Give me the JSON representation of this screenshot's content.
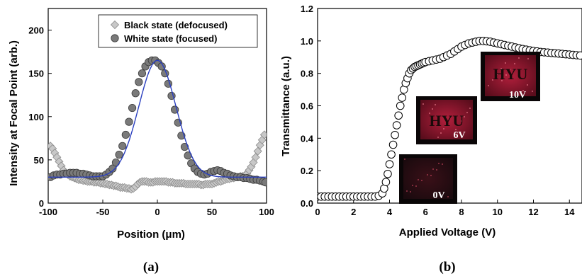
{
  "chart_data": [
    {
      "panel_label": "(a)",
      "type": "scatter",
      "xlabel": "Position (μm)",
      "ylabel": "Intensity at Focal Point (arb.)",
      "xlim": [
        -100,
        100
      ],
      "ylim": [
        0,
        225
      ],
      "xticks": [
        -100,
        -50,
        0,
        50,
        100
      ],
      "yticks": [
        0,
        50,
        100,
        150,
        200
      ],
      "legend": "top-right",
      "grid": false,
      "series": [
        {
          "name": "Black state (defocused)",
          "marker": "diamond",
          "color": "#c8c8c8",
          "x": [
            -98,
            -96,
            -94,
            -92,
            -90,
            -88,
            -86,
            -84,
            -82,
            -80,
            -78,
            -76,
            -74,
            -72,
            -70,
            -68,
            -66,
            -64,
            -62,
            -60,
            -58,
            -56,
            -54,
            -52,
            -50,
            -48,
            -46,
            -44,
            -42,
            -40,
            -38,
            -36,
            -34,
            -32,
            -30,
            -28,
            -26,
            -24,
            -22,
            -20,
            -18,
            -16,
            -14,
            -12,
            -10,
            -8,
            -6,
            -4,
            -2,
            0,
            2,
            4,
            6,
            8,
            10,
            12,
            14,
            16,
            18,
            20,
            22,
            24,
            26,
            28,
            30,
            32,
            34,
            36,
            38,
            40,
            42,
            44,
            46,
            48,
            50,
            52,
            54,
            56,
            58,
            60,
            62,
            64,
            66,
            68,
            70,
            72,
            74,
            76,
            78,
            80,
            82,
            84,
            86,
            88,
            90,
            92,
            94,
            96,
            98
          ],
          "y": [
            66,
            63,
            58,
            53,
            48,
            43,
            38,
            35,
            33,
            31,
            30,
            29,
            28,
            27,
            27,
            26,
            26,
            25,
            25,
            25,
            24,
            24,
            24,
            23,
            23,
            22,
            22,
            21,
            21,
            20,
            20,
            19,
            18,
            18,
            18,
            17,
            17,
            16,
            17,
            19,
            22,
            24,
            25,
            25,
            25,
            24,
            24,
            24,
            25,
            25,
            25,
            25,
            25,
            25,
            24,
            24,
            24,
            23,
            23,
            23,
            23,
            23,
            22,
            22,
            22,
            22,
            22,
            22,
            22,
            21,
            21,
            22,
            22,
            22,
            22,
            23,
            24,
            25,
            25,
            26,
            27,
            28,
            28,
            29,
            29,
            30,
            30,
            31,
            31,
            32,
            34,
            38,
            42,
            47,
            53,
            60,
            67,
            73,
            79
          ]
        },
        {
          "name": "White state (focused)",
          "marker": "circle",
          "color": "#7a7a7a",
          "x": [
            -98,
            -95,
            -92,
            -89,
            -86,
            -83,
            -80,
            -77,
            -74,
            -71,
            -68,
            -65,
            -62,
            -59,
            -56,
            -53,
            -50,
            -47,
            -44,
            -41,
            -38,
            -35,
            -32,
            -29,
            -26,
            -23,
            -20,
            -17,
            -14,
            -11,
            -8,
            -5,
            -2,
            1,
            4,
            7,
            10,
            13,
            16,
            19,
            22,
            25,
            28,
            31,
            34,
            37,
            40,
            43,
            46,
            49,
            52,
            55,
            58,
            61,
            64,
            67,
            70,
            73,
            76,
            79,
            82,
            85,
            88,
            91,
            94,
            97,
            99
          ],
          "y": [
            30,
            32,
            33,
            33,
            34,
            34,
            35,
            35,
            35,
            34,
            34,
            33,
            32,
            31,
            31,
            31,
            31,
            33,
            36,
            40,
            47,
            56,
            66,
            79,
            94,
            110,
            127,
            140,
            150,
            158,
            163,
            165,
            165,
            162,
            158,
            150,
            138,
            124,
            108,
            93,
            78,
            65,
            55,
            46,
            40,
            36,
            34,
            33,
            34,
            36,
            37,
            38,
            37,
            35,
            34,
            32,
            31,
            30,
            30,
            29,
            29,
            28,
            27,
            27,
            26,
            25,
            24
          ]
        },
        {
          "name": "",
          "kind": "fit-line",
          "color": "#2a3fbf",
          "model": "gaussian",
          "baseline": 30,
          "amplitude": 135,
          "center": 0,
          "sigma": 17
        }
      ]
    },
    {
      "panel_label": "(b)",
      "type": "scatter",
      "xlabel": "Applied Voltage (V)",
      "ylabel": "Transmittance (a.u.)",
      "xlim": [
        0,
        14.7
      ],
      "ylim": [
        0,
        1.2
      ],
      "xticks": [
        0,
        2,
        4,
        6,
        8,
        10,
        12,
        14
      ],
      "yticks": [
        0.0,
        0.2,
        0.4,
        0.6,
        0.8,
        1.0,
        1.2
      ],
      "grid": false,
      "series": [
        {
          "name": "",
          "marker": "open-circle",
          "color": "#000000",
          "x": [
            0,
            0.2,
            0.4,
            0.6,
            0.8,
            1.0,
            1.2,
            1.4,
            1.6,
            1.8,
            2.0,
            2.2,
            2.4,
            2.6,
            2.8,
            3.0,
            3.2,
            3.4,
            3.6,
            3.7,
            3.8,
            3.9,
            4.0,
            4.1,
            4.2,
            4.3,
            4.4,
            4.5,
            4.6,
            4.7,
            4.8,
            4.9,
            5.0,
            5.1,
            5.2,
            5.3,
            5.4,
            5.5,
            5.6,
            5.7,
            5.8,
            5.9,
            6.0,
            6.2,
            6.4,
            6.6,
            6.8,
            7.0,
            7.2,
            7.4,
            7.6,
            7.8,
            8.0,
            8.2,
            8.4,
            8.6,
            8.8,
            9.0,
            9.2,
            9.4,
            9.6,
            9.8,
            10.0,
            10.2,
            10.4,
            10.6,
            10.8,
            11.0,
            11.2,
            11.4,
            11.6,
            11.8,
            12.0,
            12.2,
            12.4,
            12.6,
            12.8,
            13.0,
            13.2,
            13.4,
            13.6,
            13.8,
            14.0,
            14.2,
            14.4,
            14.6
          ],
          "y": [
            0.04,
            0.04,
            0.04,
            0.04,
            0.04,
            0.04,
            0.04,
            0.04,
            0.04,
            0.04,
            0.04,
            0.04,
            0.04,
            0.04,
            0.04,
            0.04,
            0.04,
            0.045,
            0.06,
            0.09,
            0.13,
            0.18,
            0.24,
            0.3,
            0.36,
            0.42,
            0.48,
            0.54,
            0.6,
            0.65,
            0.7,
            0.74,
            0.77,
            0.8,
            0.82,
            0.83,
            0.84,
            0.845,
            0.85,
            0.855,
            0.86,
            0.865,
            0.87,
            0.875,
            0.88,
            0.885,
            0.89,
            0.9,
            0.91,
            0.92,
            0.935,
            0.95,
            0.965,
            0.975,
            0.985,
            0.99,
            0.995,
            1.0,
            1.0,
            0.998,
            0.995,
            0.99,
            0.985,
            0.98,
            0.975,
            0.97,
            0.965,
            0.96,
            0.955,
            0.95,
            0.946,
            0.942,
            0.938,
            0.935,
            0.932,
            0.93,
            0.928,
            0.926,
            0.924,
            0.922,
            0.92,
            0.918,
            0.916,
            0.914,
            0.912,
            0.91
          ]
        }
      ],
      "insets": [
        {
          "name": "inset-0v",
          "label": "0V",
          "text": ""
        },
        {
          "name": "inset-6v",
          "label": "6V",
          "text": "HYU"
        },
        {
          "name": "inset-10v",
          "label": "10V",
          "text": "HYU"
        }
      ]
    }
  ]
}
